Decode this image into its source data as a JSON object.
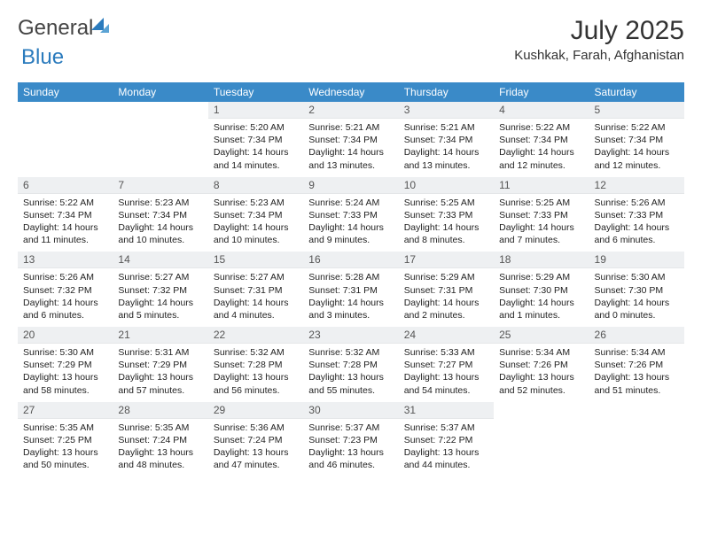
{
  "brand": {
    "part1": "General",
    "part2": "Blue"
  },
  "title": "July 2025",
  "subtitle": "Kushkak, Farah, Afghanistan",
  "colors": {
    "header_bg": "#3a8ac8",
    "header_fg": "#ffffff",
    "daynum_bg": "#eef0f2",
    "row_sep": "#3a8ac8",
    "text": "#222222",
    "brand_blue": "#2b7bbd"
  },
  "typography": {
    "title_fontsize": 30,
    "subtitle_fontsize": 15,
    "header_fontsize": 12,
    "daynum_fontsize": 12,
    "body_fontsize": 10.5
  },
  "weekdays": [
    "Sunday",
    "Monday",
    "Tuesday",
    "Wednesday",
    "Thursday",
    "Friday",
    "Saturday"
  ],
  "weeks": [
    [
      null,
      null,
      {
        "n": "1",
        "sunrise": "5:20 AM",
        "sunset": "7:34 PM",
        "day_h": "14",
        "day_m": "14"
      },
      {
        "n": "2",
        "sunrise": "5:21 AM",
        "sunset": "7:34 PM",
        "day_h": "14",
        "day_m": "13"
      },
      {
        "n": "3",
        "sunrise": "5:21 AM",
        "sunset": "7:34 PM",
        "day_h": "14",
        "day_m": "13"
      },
      {
        "n": "4",
        "sunrise": "5:22 AM",
        "sunset": "7:34 PM",
        "day_h": "14",
        "day_m": "12"
      },
      {
        "n": "5",
        "sunrise": "5:22 AM",
        "sunset": "7:34 PM",
        "day_h": "14",
        "day_m": "12"
      }
    ],
    [
      {
        "n": "6",
        "sunrise": "5:22 AM",
        "sunset": "7:34 PM",
        "day_h": "14",
        "day_m": "11"
      },
      {
        "n": "7",
        "sunrise": "5:23 AM",
        "sunset": "7:34 PM",
        "day_h": "14",
        "day_m": "10"
      },
      {
        "n": "8",
        "sunrise": "5:23 AM",
        "sunset": "7:34 PM",
        "day_h": "14",
        "day_m": "10"
      },
      {
        "n": "9",
        "sunrise": "5:24 AM",
        "sunset": "7:33 PM",
        "day_h": "14",
        "day_m": "9"
      },
      {
        "n": "10",
        "sunrise": "5:25 AM",
        "sunset": "7:33 PM",
        "day_h": "14",
        "day_m": "8"
      },
      {
        "n": "11",
        "sunrise": "5:25 AM",
        "sunset": "7:33 PM",
        "day_h": "14",
        "day_m": "7"
      },
      {
        "n": "12",
        "sunrise": "5:26 AM",
        "sunset": "7:33 PM",
        "day_h": "14",
        "day_m": "6"
      }
    ],
    [
      {
        "n": "13",
        "sunrise": "5:26 AM",
        "sunset": "7:32 PM",
        "day_h": "14",
        "day_m": "6"
      },
      {
        "n": "14",
        "sunrise": "5:27 AM",
        "sunset": "7:32 PM",
        "day_h": "14",
        "day_m": "5"
      },
      {
        "n": "15",
        "sunrise": "5:27 AM",
        "sunset": "7:31 PM",
        "day_h": "14",
        "day_m": "4"
      },
      {
        "n": "16",
        "sunrise": "5:28 AM",
        "sunset": "7:31 PM",
        "day_h": "14",
        "day_m": "3"
      },
      {
        "n": "17",
        "sunrise": "5:29 AM",
        "sunset": "7:31 PM",
        "day_h": "14",
        "day_m": "2"
      },
      {
        "n": "18",
        "sunrise": "5:29 AM",
        "sunset": "7:30 PM",
        "day_h": "14",
        "day_m": "1"
      },
      {
        "n": "19",
        "sunrise": "5:30 AM",
        "sunset": "7:30 PM",
        "day_h": "14",
        "day_m": "0"
      }
    ],
    [
      {
        "n": "20",
        "sunrise": "5:30 AM",
        "sunset": "7:29 PM",
        "day_h": "13",
        "day_m": "58"
      },
      {
        "n": "21",
        "sunrise": "5:31 AM",
        "sunset": "7:29 PM",
        "day_h": "13",
        "day_m": "57"
      },
      {
        "n": "22",
        "sunrise": "5:32 AM",
        "sunset": "7:28 PM",
        "day_h": "13",
        "day_m": "56"
      },
      {
        "n": "23",
        "sunrise": "5:32 AM",
        "sunset": "7:28 PM",
        "day_h": "13",
        "day_m": "55"
      },
      {
        "n": "24",
        "sunrise": "5:33 AM",
        "sunset": "7:27 PM",
        "day_h": "13",
        "day_m": "54"
      },
      {
        "n": "25",
        "sunrise": "5:34 AM",
        "sunset": "7:26 PM",
        "day_h": "13",
        "day_m": "52"
      },
      {
        "n": "26",
        "sunrise": "5:34 AM",
        "sunset": "7:26 PM",
        "day_h": "13",
        "day_m": "51"
      }
    ],
    [
      {
        "n": "27",
        "sunrise": "5:35 AM",
        "sunset": "7:25 PM",
        "day_h": "13",
        "day_m": "50"
      },
      {
        "n": "28",
        "sunrise": "5:35 AM",
        "sunset": "7:24 PM",
        "day_h": "13",
        "day_m": "48"
      },
      {
        "n": "29",
        "sunrise": "5:36 AM",
        "sunset": "7:24 PM",
        "day_h": "13",
        "day_m": "47"
      },
      {
        "n": "30",
        "sunrise": "5:37 AM",
        "sunset": "7:23 PM",
        "day_h": "13",
        "day_m": "46"
      },
      {
        "n": "31",
        "sunrise": "5:37 AM",
        "sunset": "7:22 PM",
        "day_h": "13",
        "day_m": "44"
      },
      null,
      null
    ]
  ],
  "labels": {
    "sunrise": "Sunrise:",
    "sunset": "Sunset:",
    "daylight": "Daylight:",
    "hours": "hours",
    "and": "and",
    "minutes": "minutes."
  }
}
